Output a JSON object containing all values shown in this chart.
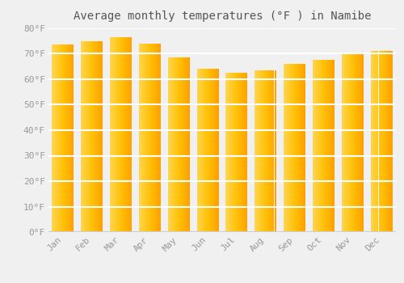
{
  "months": [
    "Jan",
    "Feb",
    "Mar",
    "Apr",
    "May",
    "Jun",
    "Jul",
    "Aug",
    "Sep",
    "Oct",
    "Nov",
    "Dec"
  ],
  "values": [
    73.5,
    75.0,
    76.5,
    74.0,
    68.5,
    64.0,
    62.5,
    63.5,
    66.0,
    67.5,
    70.0,
    71.0
  ],
  "title": "Average monthly temperatures (°F ) in Namibe",
  "ylim": [
    0,
    80
  ],
  "yticks": [
    0,
    10,
    20,
    30,
    40,
    50,
    60,
    70,
    80
  ],
  "ytick_labels": [
    "0°F",
    "10°F",
    "20°F",
    "30°F",
    "40°F",
    "50°F",
    "60°F",
    "70°F",
    "80°F"
  ],
  "background_color": "#f0f0f0",
  "plot_bg_color": "#f0f0f0",
  "grid_color": "#ffffff",
  "title_fontsize": 10,
  "tick_fontsize": 8,
  "bar_width": 0.75,
  "bar_color_left": "#FFD54F",
  "bar_color_right": "#FFA000",
  "bar_color_mid": "#FFC107"
}
